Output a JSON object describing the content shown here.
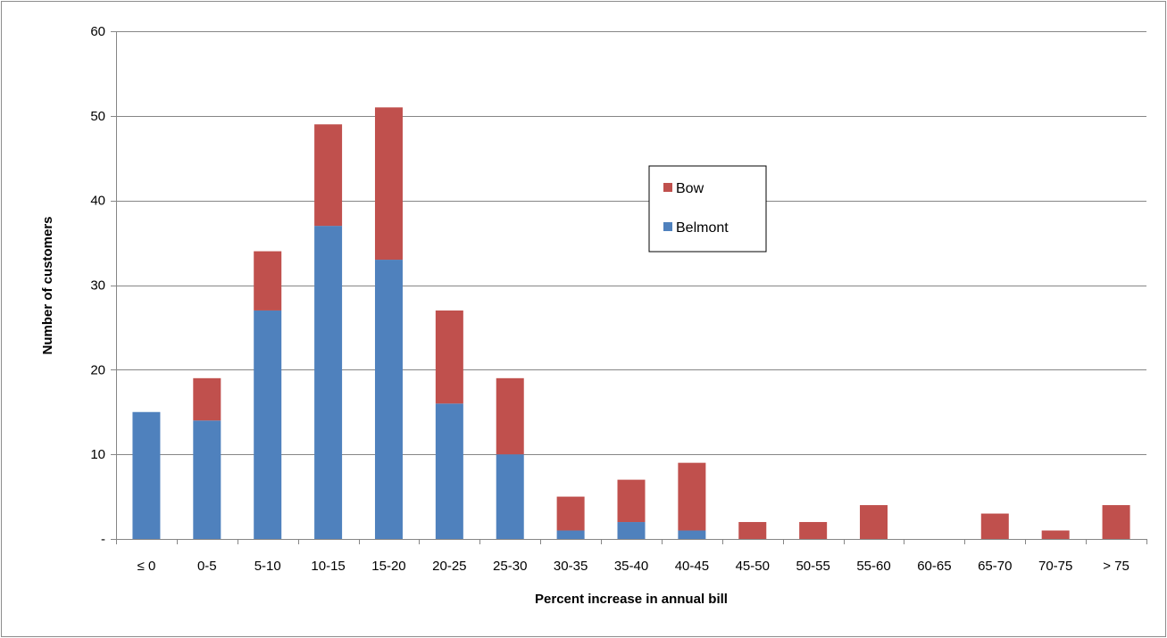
{
  "chart_data": {
    "type": "bar",
    "stacked": true,
    "title": "",
    "xlabel": "Percent increase in annual bill",
    "ylabel": "Number of customers",
    "ylim": [
      0,
      60
    ],
    "yticks": [
      0,
      10,
      20,
      30,
      40,
      50,
      60
    ],
    "ytick_labels": [
      "-",
      "10",
      "20",
      "30",
      "40",
      "50",
      "60"
    ],
    "grid": "horizontal",
    "legend_position": "upper-middle-right",
    "categories": [
      "≤ 0",
      "0-5",
      "5-10",
      "10-15",
      "15-20",
      "20-25",
      "25-30",
      "30-35",
      "35-40",
      "40-45",
      "45-50",
      "50-55",
      "55-60",
      "60-65",
      "65-70",
      "70-75",
      "> 75"
    ],
    "series": [
      {
        "name": "Belmont",
        "color": "#4F81BD",
        "values": [
          15,
          14,
          27,
          37,
          33,
          16,
          10,
          1,
          2,
          1,
          0,
          0,
          0,
          0,
          0,
          0,
          0
        ]
      },
      {
        "name": "Bow",
        "color": "#C0504D",
        "values": [
          0,
          5,
          7,
          12,
          18,
          11,
          9,
          4,
          5,
          8,
          2,
          2,
          4,
          0,
          3,
          1,
          4
        ]
      }
    ],
    "legend_order": [
      "Bow",
      "Belmont"
    ]
  }
}
